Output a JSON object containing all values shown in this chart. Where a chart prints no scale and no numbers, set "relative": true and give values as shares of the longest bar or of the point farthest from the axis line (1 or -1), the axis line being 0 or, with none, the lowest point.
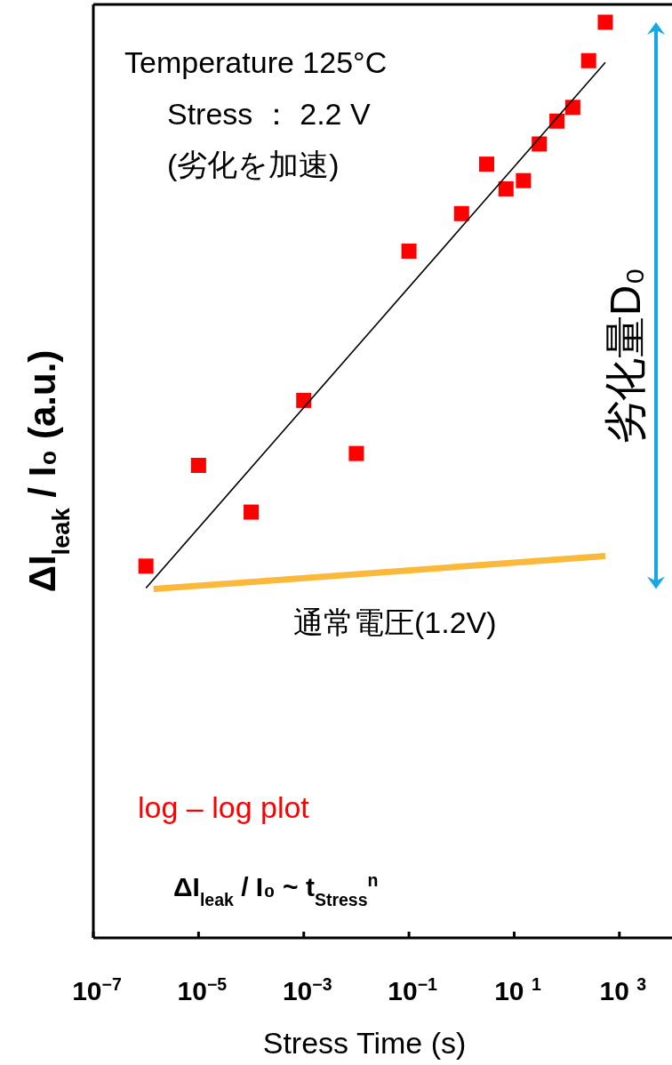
{
  "chart_data": {
    "type": "scatter",
    "log": "x",
    "relative": true,
    "xlabel": "Stress Time (s)",
    "ylabel": "ΔI$_{leak}$ / I₀ (a.u.)",
    "xlim": [
      1e-07,
      10000.0
    ],
    "xticks": [
      {
        "value": 1e-07,
        "label": "10$^{−7}$"
      },
      {
        "value": 1e-05,
        "label": "10$^{−5}$"
      },
      {
        "value": 0.001,
        "label": "10$^{−3}$"
      },
      {
        "value": 0.1,
        "label": "10$^{−1}$"
      },
      {
        "value": 10,
        "label": "10 $^{1}$"
      },
      {
        "value": 1000,
        "label": "10 $^{3}$"
      }
    ],
    "annotations": [
      "Temperature  125°C",
      "Stress ： 2.2 V",
      "(劣化を加速)",
      "通常電圧(1.2V)",
      "劣化量D₀",
      "log – log plot",
      "ΔI$_{leak}$ / I₀  ~  t$_{Stress}$$^{n}$"
    ],
    "series": [
      {
        "type": "scatter",
        "marker": "square",
        "color": "#ff0000",
        "x": [
          1e-06,
          1e-05,
          0.0001,
          0.001,
          0.01,
          0.1,
          1,
          3,
          7,
          15,
          30,
          65,
          130,
          260,
          540
        ],
        "values": [
          0.406,
          0.516,
          0.465,
          0.587,
          0.529,
          0.75,
          0.791,
          0.845,
          0.818,
          0.827,
          0.867,
          0.892,
          0.907,
          0.958,
          1
        ]
      },
      {
        "type": "line",
        "color": "#000000",
        "x": [
          1e-06,
          540
        ],
        "values": [
          0.382,
          0.956
        ]
      },
      {
        "type": "line",
        "color": "#fbb93c",
        "x": [
          1.4e-06,
          540
        ],
        "values": [
          0.381,
          0.417
        ]
      }
    ]
  }
}
